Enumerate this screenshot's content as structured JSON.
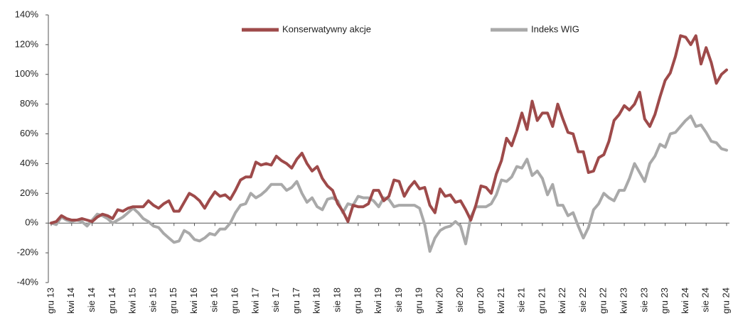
{
  "chart_data": {
    "type": "line",
    "categories": [
      "gru 13",
      null,
      null,
      null,
      "kwi 14",
      null,
      null,
      null,
      "sie 14",
      null,
      null,
      null,
      "gru 14",
      null,
      null,
      null,
      "kwi 15",
      null,
      null,
      null,
      "sie 15",
      null,
      null,
      null,
      "gru 15",
      null,
      null,
      null,
      "kwi 16",
      null,
      null,
      null,
      "sie 16",
      null,
      null,
      null,
      "gru 16",
      null,
      null,
      null,
      "kwi 17",
      null,
      null,
      null,
      "sie 17",
      null,
      null,
      null,
      "gru 17",
      null,
      null,
      null,
      "kwi 18",
      null,
      null,
      null,
      "sie 18",
      null,
      null,
      null,
      "gru 18",
      null,
      null,
      null,
      "kwi 19",
      null,
      null,
      null,
      "sie 19",
      null,
      null,
      null,
      "gru 19",
      null,
      null,
      null,
      "kwi 20",
      null,
      null,
      null,
      "sie 20",
      null,
      null,
      null,
      "gru 20",
      null,
      null,
      null,
      "kwi 21",
      null,
      null,
      null,
      "sie 21",
      null,
      null,
      null,
      "gru 21",
      null,
      null,
      null,
      "kwi 22",
      null,
      null,
      null,
      "sie 22",
      null,
      null,
      null,
      "gru 22",
      null,
      null,
      null,
      "kwi 23",
      null,
      null,
      null,
      "sie 23",
      null,
      null,
      null,
      "gru 23",
      null,
      null,
      null,
      "kwi 24",
      null,
      null,
      null,
      "sie 24",
      null,
      null,
      null,
      "gru 24"
    ],
    "series": [
      {
        "name": "Konserwatywny akcje",
        "color": "#9e4a4a",
        "values": [
          0,
          1,
          5,
          3,
          2,
          2,
          3,
          2,
          1,
          4,
          6,
          5,
          3,
          9,
          8,
          10,
          11,
          11,
          11,
          15,
          12,
          10,
          13,
          15,
          8,
          8,
          14,
          20,
          18,
          15,
          10,
          16,
          21,
          18,
          19,
          16,
          22,
          29,
          31,
          31,
          41,
          39,
          40,
          39,
          45,
          42,
          40,
          37,
          43,
          47,
          40,
          35,
          38,
          30,
          25,
          22,
          13,
          8,
          1,
          12,
          11,
          11,
          13,
          22,
          22,
          15,
          18,
          29,
          28,
          18,
          24,
          28,
          23,
          24,
          12,
          7,
          23,
          18,
          19,
          14,
          15,
          9,
          2,
          12,
          25,
          24,
          20,
          33,
          42,
          57,
          52,
          62,
          74,
          63,
          82,
          69,
          74,
          74,
          65,
          80,
          70,
          61,
          60,
          48,
          48,
          34,
          35,
          44,
          46,
          55,
          69,
          73,
          79,
          76,
          80,
          88,
          70,
          65,
          73,
          85,
          96,
          101,
          112,
          126,
          125,
          120,
          126,
          107,
          118,
          108,
          94,
          100,
          103
        ]
      },
      {
        "name": "Indeks WIG",
        "color": "#a9a9a9",
        "values": [
          0,
          -1,
          4,
          2,
          1,
          2,
          1,
          -2,
          2,
          6,
          5,
          3,
          0,
          2,
          4,
          7,
          10,
          7,
          3,
          1,
          -2,
          -3,
          -7,
          -10,
          -13,
          -12,
          -5,
          -7,
          -11,
          -12,
          -10,
          -7,
          -8,
          -4,
          -4,
          0,
          7,
          12,
          13,
          20,
          17,
          19,
          22,
          26,
          26,
          26,
          22,
          24,
          28,
          20,
          14,
          17,
          11,
          9,
          16,
          17,
          15,
          7,
          13,
          12,
          18,
          17,
          17,
          15,
          11,
          17,
          16,
          11,
          12,
          12,
          12,
          12,
          10,
          -1,
          -19,
          -10,
          -5,
          -3,
          -2,
          1,
          -2,
          -14,
          4,
          11,
          11,
          11,
          13,
          19,
          29,
          28,
          31,
          38,
          37,
          43,
          32,
          35,
          30,
          19,
          26,
          12,
          12,
          5,
          7,
          -2,
          -10,
          -3,
          9,
          13,
          20,
          17,
          15,
          22,
          22,
          30,
          40,
          34,
          28,
          40,
          45,
          53,
          51,
          60,
          61,
          65,
          69,
          72,
          65,
          66,
          61,
          55,
          54,
          50,
          49
        ]
      }
    ],
    "ylim": [
      -40,
      140
    ],
    "yticks": [
      {
        "value": -40,
        "label": "-40%"
      },
      {
        "value": -20,
        "label": "-20%"
      },
      {
        "value": 0,
        "label": "0%"
      },
      {
        "value": 20,
        "label": "20%"
      },
      {
        "value": 40,
        "label": "40%"
      },
      {
        "value": 60,
        "label": "60%"
      },
      {
        "value": 80,
        "label": "80%"
      },
      {
        "value": 100,
        "label": "100%"
      },
      {
        "value": 120,
        "label": "120%"
      },
      {
        "value": 140,
        "label": "140%"
      }
    ],
    "grid": false,
    "legend": "top"
  }
}
